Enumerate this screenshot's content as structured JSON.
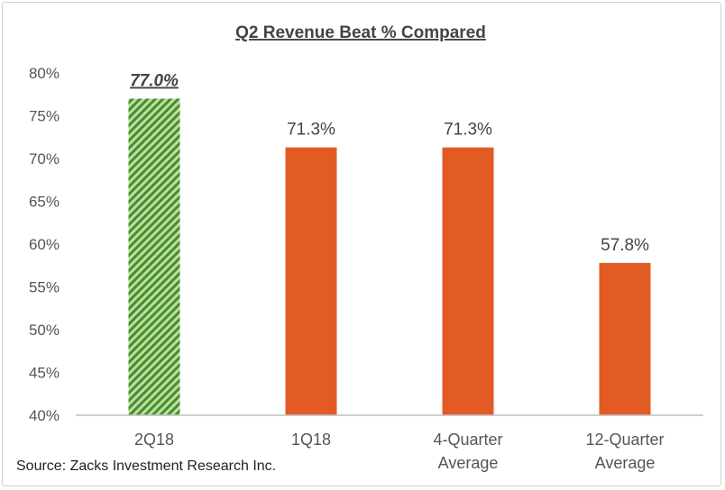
{
  "chart_data": {
    "type": "bar",
    "title": "Q2 Revenue Beat % Compared",
    "xlabel": "",
    "ylabel": "",
    "ylim": [
      40,
      80
    ],
    "yticks": [
      40,
      45,
      50,
      55,
      60,
      65,
      70,
      75,
      80
    ],
    "ytick_labels": [
      "40%",
      "45%",
      "50%",
      "55%",
      "60%",
      "65%",
      "70%",
      "75%",
      "80%"
    ],
    "grid": false,
    "categories": [
      [
        "2Q18"
      ],
      [
        "1Q18"
      ],
      [
        "4-Quarter",
        "Average"
      ],
      [
        "12-Quarter",
        "Average"
      ]
    ],
    "values": [
      77.0,
      71.3,
      71.3,
      57.8
    ],
    "data_labels": [
      "77.0%",
      "71.3%",
      "71.3%",
      "57.8%"
    ],
    "bar_styles": [
      "hatched-green",
      "solid-orange",
      "solid-orange",
      "solid-orange"
    ],
    "highlight_index": 0,
    "colors": {
      "orange": "#e25b25",
      "green_dark": "#4a8a34",
      "green_light": "#b8e29a",
      "axis": "#bfbfbf",
      "text": "#555555"
    },
    "source": "Source: Zacks Investment Research Inc."
  }
}
